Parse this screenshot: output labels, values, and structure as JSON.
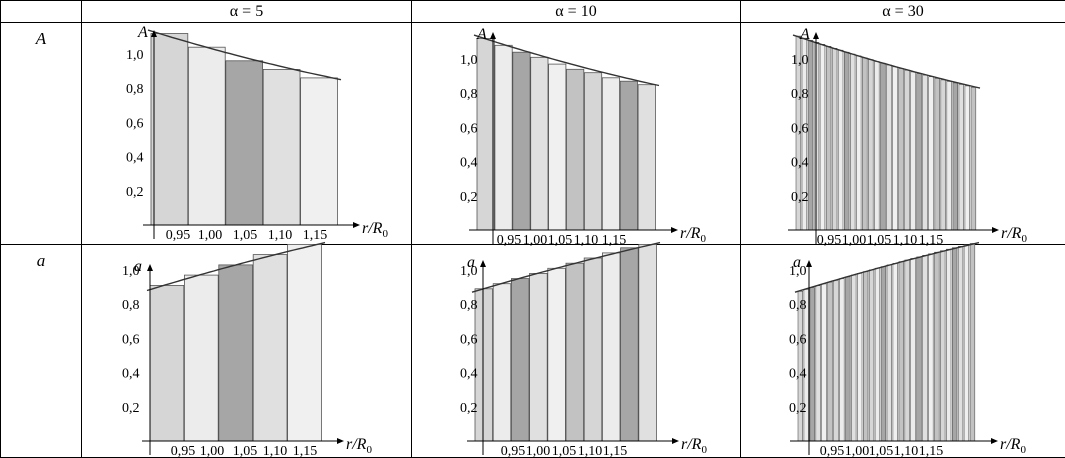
{
  "table": {
    "column_headers": [
      "",
      "α = 5",
      "α = 10",
      "α = 30"
    ],
    "row_labels": [
      "A",
      "a"
    ],
    "x_axis_label_main": "r/R",
    "x_axis_label_sub": "0"
  },
  "chart_data": [
    {
      "id": "A-alpha5",
      "type": "bar+line",
      "row": "A",
      "column": "α = 5",
      "ylabel": "A",
      "xlabel": "r/R0",
      "xlim": [
        0.905,
        1.172
      ],
      "ylim": [
        0,
        1.15
      ],
      "x_ticks": [
        "0,95",
        "1,00",
        "1,05",
        "1,10",
        "1,15"
      ],
      "y_ticks": [
        "0,2",
        "0,4",
        "0,6",
        "0,8",
        "1,0"
      ],
      "bar_count": 5,
      "curve": {
        "r0": 0.905,
        "r1": 1.172,
        "y0": 1.14,
        "y1": 0.85
      },
      "bars": [
        1.12,
        1.04,
        0.96,
        0.91,
        0.86
      ]
    },
    {
      "id": "A-alpha10",
      "type": "bar+line",
      "row": "A",
      "column": "α = 10",
      "ylabel": "A",
      "xlabel": "r/R0",
      "xlim": [
        0.872,
        1.172
      ],
      "ylim": [
        0,
        1.15
      ],
      "x_ticks": [
        "0,95",
        "1,00",
        "1,05",
        "1,10",
        "1,15"
      ],
      "y_ticks": [
        "0,2",
        "0,4",
        "0,6",
        "0,8",
        "1,0"
      ],
      "bar_count": 10,
      "curve": {
        "r0": 0.872,
        "r1": 1.172,
        "y0": 1.14,
        "y1": 0.845
      },
      "bars": [
        1.12,
        1.08,
        1.04,
        1.01,
        0.97,
        0.94,
        0.92,
        0.89,
        0.87,
        0.85
      ]
    },
    {
      "id": "A-alpha30",
      "type": "bar+line",
      "row": "A",
      "column": "α = 30",
      "ylabel": "A",
      "xlabel": "r/R0",
      "xlim": [
        0.872,
        1.172
      ],
      "ylim": [
        0,
        1.15
      ],
      "x_ticks": [
        "0,95",
        "1,00",
        "1,05",
        "1,10",
        "1,15"
      ],
      "y_ticks": [
        "0,2",
        "0,4",
        "0,6",
        "0,8",
        "1,0"
      ],
      "bar_count": 30,
      "curve": {
        "r0": 0.872,
        "r1": 1.172,
        "y0": 1.14,
        "y1": 0.83
      }
    },
    {
      "id": "a-alpha5",
      "type": "bar+line",
      "row": "a",
      "column": "α = 5",
      "ylabel": "a",
      "xlabel": "r/R0",
      "xlim": [
        0.905,
        1.172
      ],
      "ylim": [
        0,
        1.2
      ],
      "x_ticks": [
        "0,95",
        "1,00",
        "1,05",
        "1,10",
        "1,15"
      ],
      "y_ticks": [
        "0,2",
        "0,4",
        "0,6",
        "0,8",
        "1,0"
      ],
      "bar_count": 5,
      "curve": {
        "r0": 0.905,
        "r1": 1.172,
        "y0": 0.88,
        "y1": 1.16
      },
      "bars": [
        0.91,
        0.97,
        1.03,
        1.09,
        1.15
      ]
    },
    {
      "id": "a-alpha10",
      "type": "bar+line",
      "row": "a",
      "column": "α = 10",
      "ylabel": "a",
      "xlabel": "r/R0",
      "xlim": [
        0.872,
        1.172
      ],
      "ylim": [
        0,
        1.2
      ],
      "x_ticks": [
        "0,95",
        "1,00",
        "1,05",
        "1,10",
        "1,15"
      ],
      "y_ticks": [
        "0,2",
        "0,4",
        "0,6",
        "0,8",
        "1,0"
      ],
      "bar_count": 10,
      "curve": {
        "r0": 0.872,
        "r1": 1.172,
        "y0": 0.87,
        "y1": 1.16
      },
      "bars": [
        0.89,
        0.92,
        0.95,
        0.98,
        1.01,
        1.04,
        1.07,
        1.1,
        1.13,
        1.15
      ]
    },
    {
      "id": "a-alpha30",
      "type": "bar+line",
      "row": "a",
      "column": "α = 30",
      "ylabel": "a",
      "xlabel": "r/R0",
      "xlim": [
        0.872,
        1.172
      ],
      "ylim": [
        0,
        1.2
      ],
      "x_ticks": [
        "0,95",
        "1,00",
        "1,05",
        "1,10",
        "1,15"
      ],
      "y_ticks": [
        "0,2",
        "0,4",
        "0,6",
        "0,8",
        "1,0"
      ],
      "bar_count": 30,
      "curve": {
        "r0": 0.872,
        "r1": 1.172,
        "y0": 0.87,
        "y1": 1.16
      }
    }
  ]
}
